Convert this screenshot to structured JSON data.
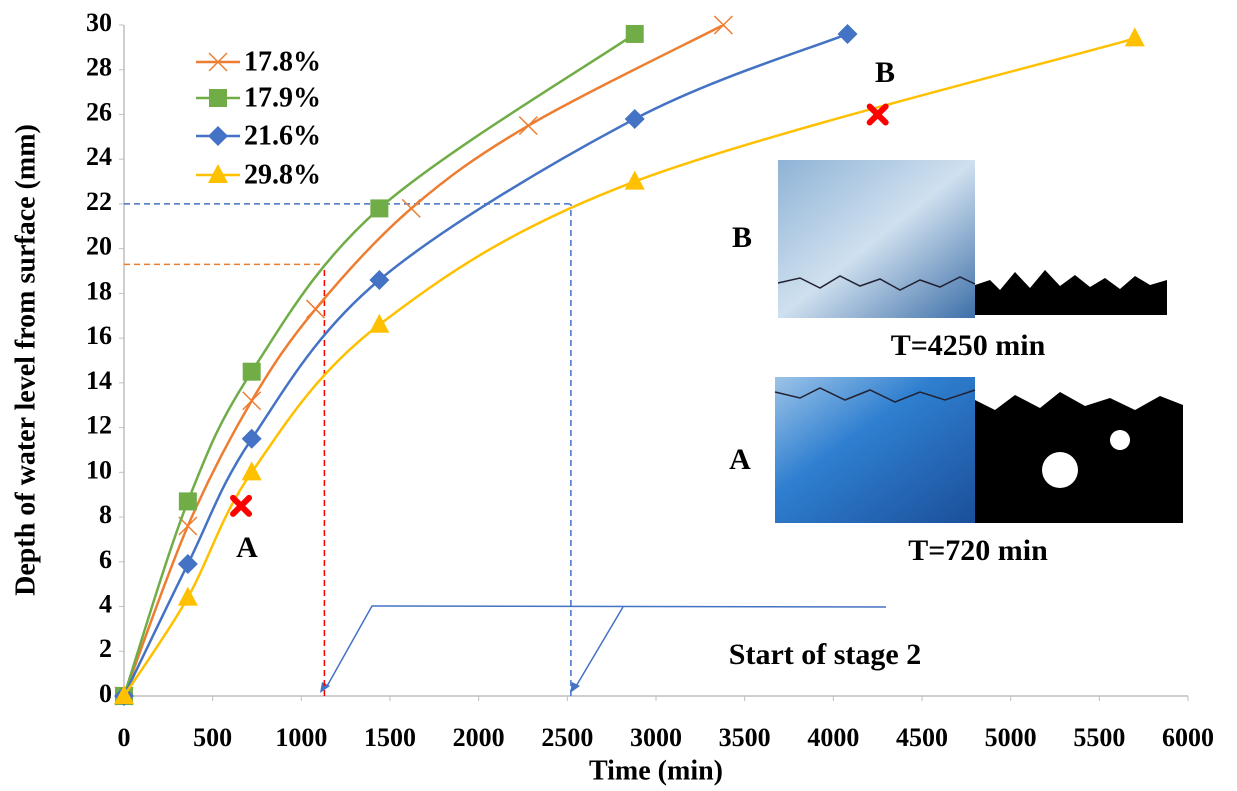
{
  "chart_data": {
    "type": "line",
    "x_label": "Time  (min)",
    "y_label": "Depth of water level from surface (mm)",
    "xlim": [
      0,
      6000
    ],
    "ylim": [
      0,
      30
    ],
    "xticks": [
      0,
      500,
      1000,
      1500,
      2000,
      2500,
      3000,
      3500,
      4000,
      4500,
      5000,
      5500,
      6000
    ],
    "yticks": [
      0,
      2,
      4,
      6,
      8,
      10,
      12,
      14,
      16,
      18,
      20,
      22,
      24,
      26,
      28,
      30
    ],
    "grid": false,
    "legend": "upper left",
    "series": [
      {
        "name": "17.8%",
        "color": "#ed7d31",
        "marker": "x",
        "x": [
          0,
          360,
          720,
          1080,
          1620,
          2280,
          3380
        ],
        "values": [
          0,
          7.6,
          13.2,
          17.3,
          21.8,
          25.5,
          30
        ]
      },
      {
        "name": "17.9%",
        "color": "#70ad47",
        "marker": "square",
        "x": [
          0,
          360,
          720,
          1440,
          2880
        ],
        "values": [
          0,
          8.7,
          14.5,
          21.8,
          29.6
        ]
      },
      {
        "name": "21.6%",
        "color": "#4472c4",
        "marker": "diamond",
        "x": [
          0,
          360,
          720,
          1440,
          2880,
          4080
        ],
        "values": [
          0,
          5.9,
          11.5,
          18.6,
          25.8,
          29.6
        ]
      },
      {
        "name": "29.8%",
        "color": "#ffc000",
        "marker": "triangle",
        "x": [
          0,
          360,
          720,
          1440,
          2880,
          5700
        ],
        "values": [
          0,
          4.4,
          10,
          16.6,
          23,
          29.4
        ]
      }
    ],
    "points": [
      {
        "label": "A",
        "x": 660,
        "y": 8.5,
        "color": "#ff0000"
      },
      {
        "label": "B",
        "x": 4250,
        "y": 26,
        "color": "#ff0000"
      }
    ],
    "reference_lines": [
      {
        "x": 1130,
        "y": 19.3,
        "h_color": "#ed7d31",
        "v_color": "#ff0000"
      },
      {
        "x": 2520,
        "y": 22,
        "h_color": "#4472c4",
        "v_color": "#4472c4"
      }
    ],
    "annotations": [
      "Start of stage 2",
      "B",
      "T=4250 min",
      "A",
      "T=720 min"
    ]
  }
}
